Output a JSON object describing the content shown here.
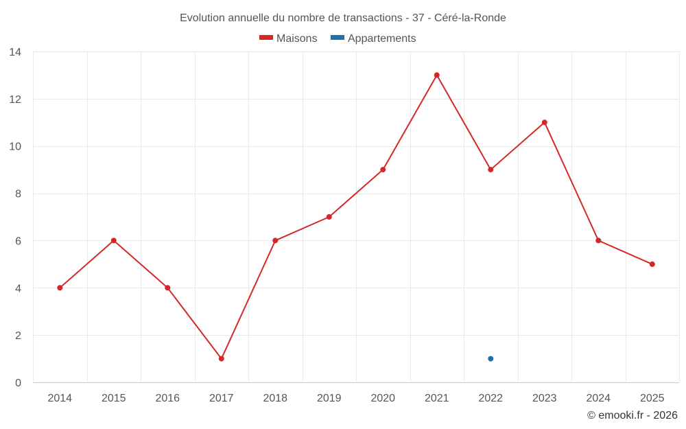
{
  "chart_data": {
    "type": "line",
    "title": "Evolution annuelle du nombre de transactions - 37 - Céré-la-Ronde",
    "categories": [
      "2014",
      "2015",
      "2016",
      "2017",
      "2018",
      "2019",
      "2020",
      "2021",
      "2022",
      "2023",
      "2024",
      "2025"
    ],
    "series": [
      {
        "name": "Maisons",
        "color": "#d62728",
        "values": [
          4,
          6,
          4,
          1,
          6,
          7,
          9,
          13,
          9,
          11,
          6,
          5
        ]
      },
      {
        "name": "Appartements",
        "color": "#1f6fa8",
        "values": [
          null,
          null,
          null,
          null,
          null,
          null,
          null,
          null,
          1,
          null,
          null,
          null
        ]
      }
    ],
    "ylim": [
      0,
      14
    ],
    "yticks": [
      "0",
      "2",
      "4",
      "6",
      "8",
      "10",
      "12",
      "14"
    ],
    "xlabel": "",
    "ylabel": "",
    "grid": true,
    "legend": "top-center",
    "credit": "© emooki.fr - 2026"
  }
}
